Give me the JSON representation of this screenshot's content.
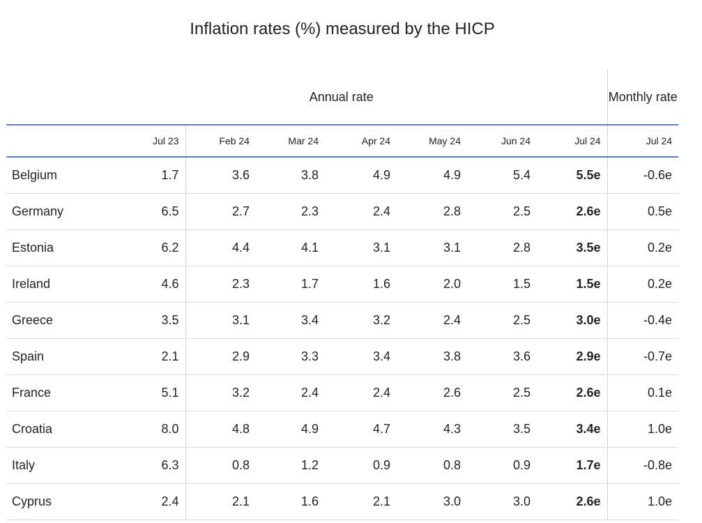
{
  "title": "Inflation rates (%) measured by the HICP",
  "header": {
    "annual_rate": "Annual rate",
    "monthly_rate": "Monthly rate",
    "months": [
      "Jul 23",
      "Feb 24",
      "Mar 24",
      "Apr 24",
      "May 24",
      "Jun 24",
      "Jul 24",
      "Jul 24"
    ]
  },
  "rows": [
    {
      "country": "Belgium",
      "values": [
        "1.7",
        "3.6",
        "3.8",
        "4.9",
        "4.9",
        "5.4",
        "5.5e",
        "-0.6e"
      ]
    },
    {
      "country": "Germany",
      "values": [
        "6.5",
        "2.7",
        "2.3",
        "2.4",
        "2.8",
        "2.5",
        "2.6e",
        "0.5e"
      ]
    },
    {
      "country": "Estonia",
      "values": [
        "6.2",
        "4.4",
        "4.1",
        "3.1",
        "3.1",
        "2.8",
        "3.5e",
        "0.2e"
      ]
    },
    {
      "country": "Ireland",
      "values": [
        "4.6",
        "2.3",
        "1.7",
        "1.6",
        "2.0",
        "1.5",
        "1.5e",
        "0.2e"
      ]
    },
    {
      "country": "Greece",
      "values": [
        "3.5",
        "3.1",
        "3.4",
        "3.2",
        "2.4",
        "2.5",
        "3.0e",
        "-0.4e"
      ]
    },
    {
      "country": "Spain",
      "values": [
        "2.1",
        "2.9",
        "3.3",
        "3.4",
        "3.8",
        "3.6",
        "2.9e",
        "-0.7e"
      ]
    },
    {
      "country": "France",
      "values": [
        "5.1",
        "3.2",
        "2.4",
        "2.4",
        "2.6",
        "2.5",
        "2.6e",
        "0.1e"
      ]
    },
    {
      "country": "Croatia",
      "values": [
        "8.0",
        "4.8",
        "4.9",
        "4.7",
        "4.3",
        "3.5",
        "3.4e",
        "1.0e"
      ]
    },
    {
      "country": "Italy",
      "values": [
        "6.3",
        "0.8",
        "1.2",
        "0.9",
        "0.8",
        "0.9",
        "1.7e",
        "-0.8e"
      ]
    },
    {
      "country": "Cyprus",
      "values": [
        "2.4",
        "2.1",
        "1.6",
        "2.1",
        "3.0",
        "3.0",
        "2.6e",
        "1.0e"
      ]
    }
  ]
}
